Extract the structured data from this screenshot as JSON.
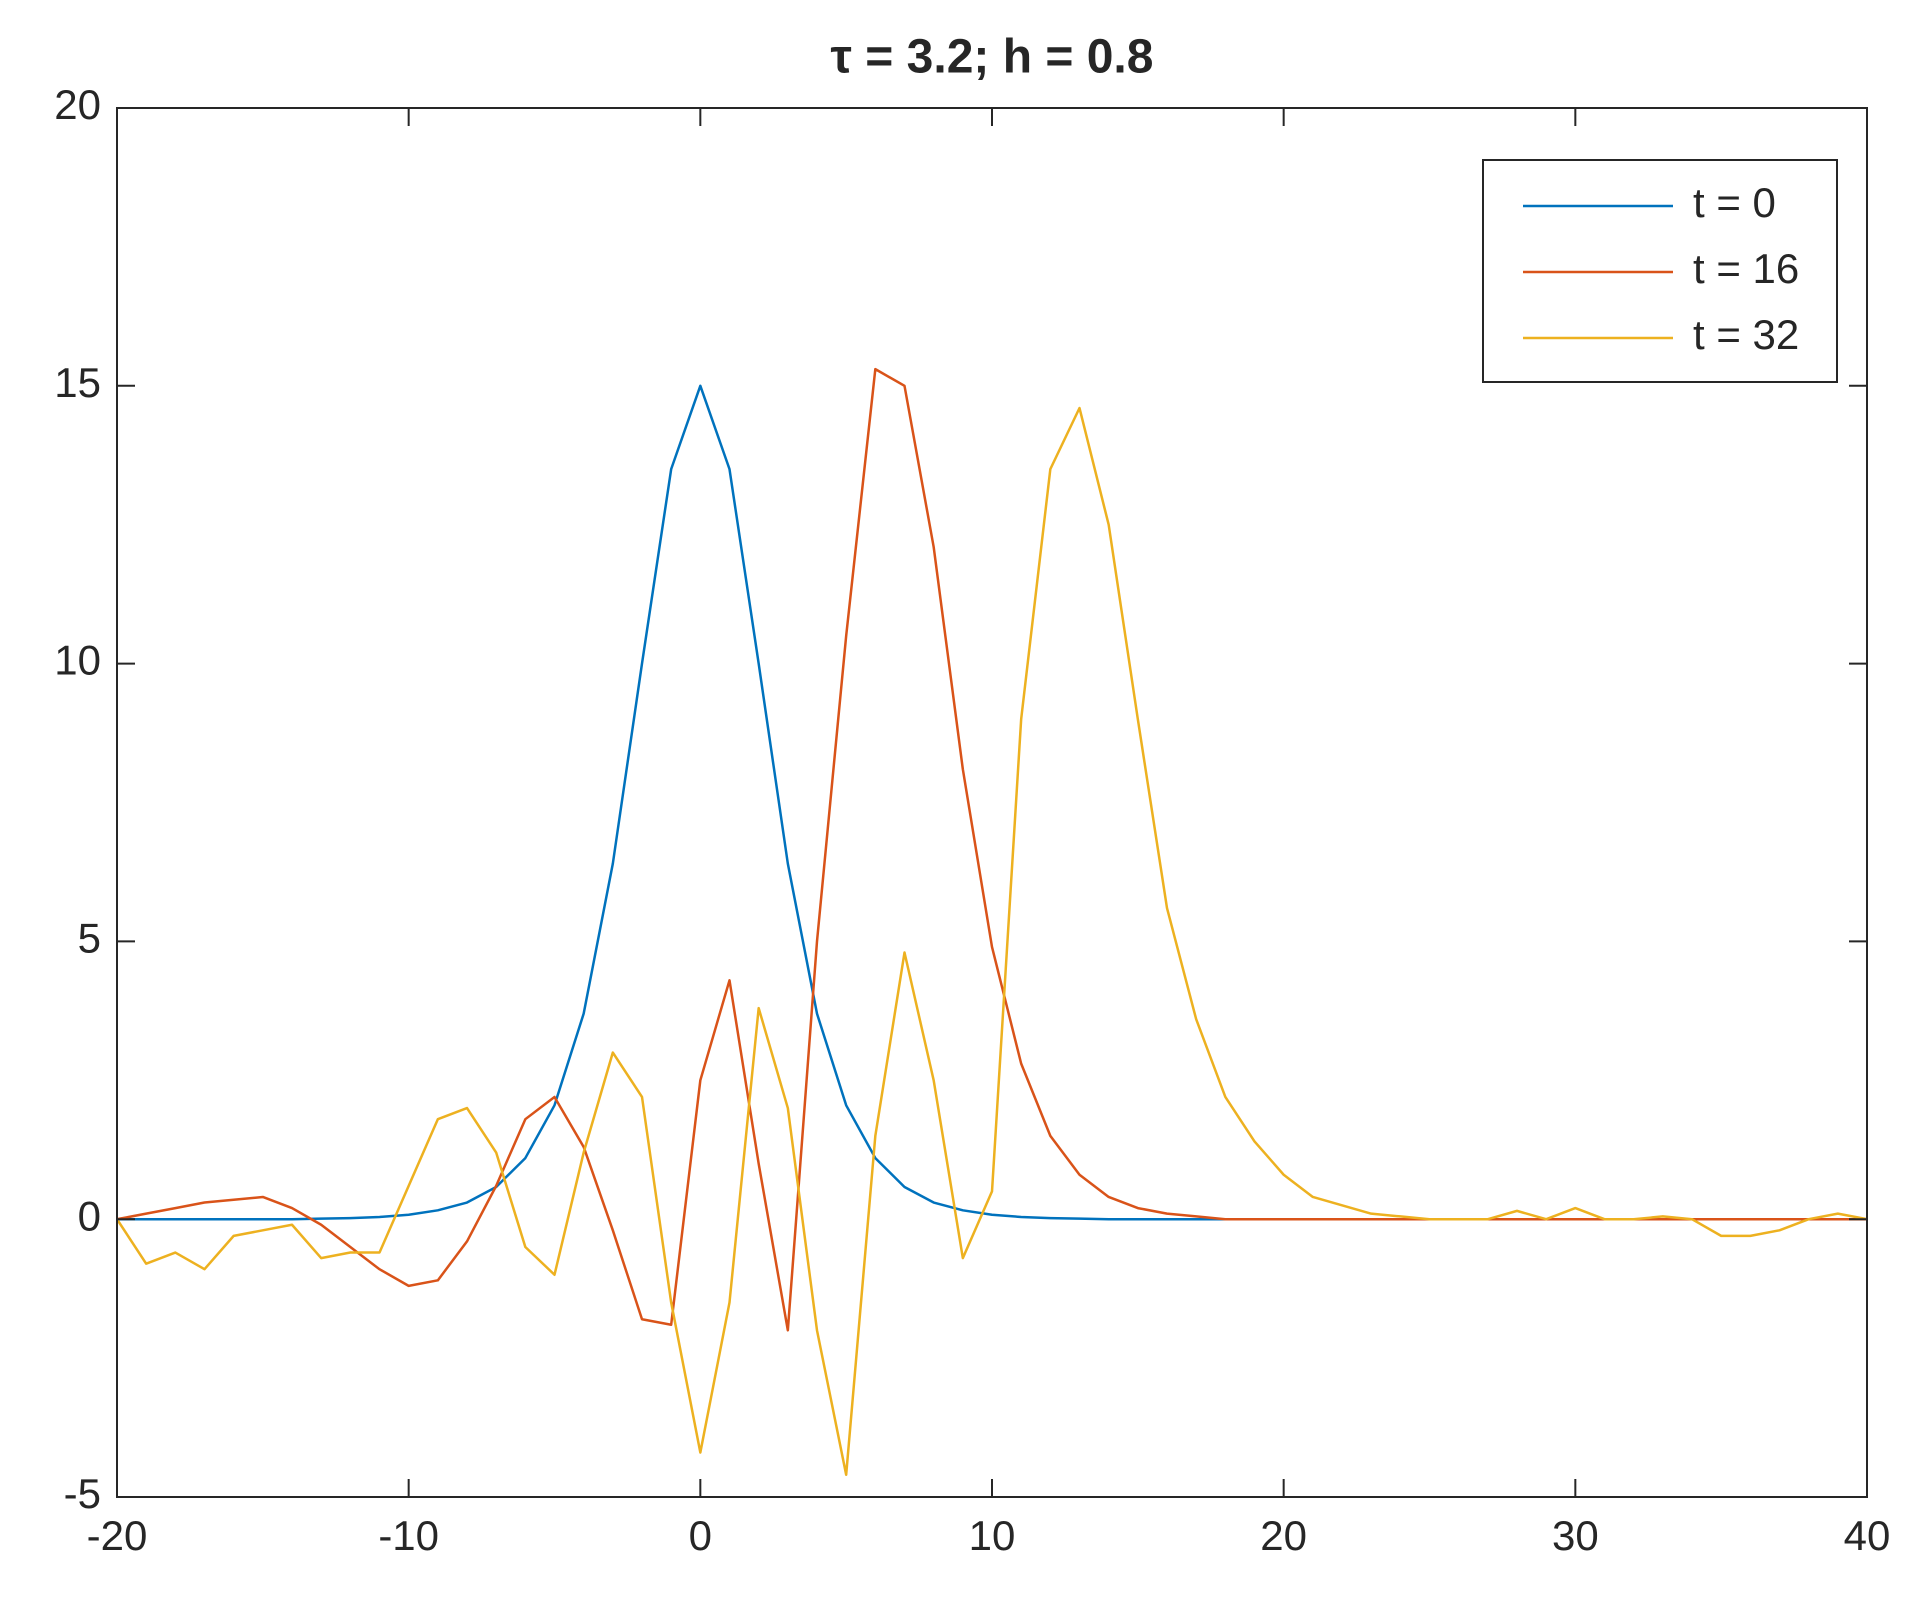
{
  "chart_data": {
    "type": "line",
    "title": "τ = 3.2; h = 0.8",
    "x": [
      -20,
      -19,
      -18,
      -17,
      -16,
      -15,
      -14,
      -13,
      -12,
      -11,
      -10,
      -9,
      -8,
      -7,
      -6,
      -5,
      -4,
      -3,
      -2,
      -1,
      0,
      1,
      2,
      3,
      4,
      5,
      6,
      7,
      8,
      9,
      10,
      11,
      12,
      13,
      14,
      15,
      16,
      17,
      18,
      19,
      20,
      21,
      22,
      23,
      24,
      25,
      26,
      27,
      28,
      29,
      30,
      31,
      32,
      33,
      34,
      35,
      36,
      37,
      38,
      39,
      40
    ],
    "series": [
      {
        "name": "t = 0",
        "color": "#0072BD",
        "values": [
          0,
          0,
          0,
          0,
          0,
          0,
          0,
          0.01,
          0.02,
          0.04,
          0.08,
          0.16,
          0.3,
          0.58,
          1.1,
          2.05,
          3.7,
          6.4,
          10,
          13.5,
          15,
          13.5,
          10,
          6.4,
          3.7,
          2.05,
          1.1,
          0.58,
          0.3,
          0.16,
          0.08,
          0.04,
          0.02,
          0.01,
          0,
          0,
          0,
          0,
          0,
          0,
          0,
          0,
          0,
          0,
          0,
          0,
          0,
          0,
          0,
          0,
          0,
          0,
          0,
          0,
          0,
          0,
          0,
          0,
          0,
          0,
          0
        ]
      },
      {
        "name": "t = 16",
        "color": "#D95319",
        "values": [
          0,
          0.1,
          0.2,
          0.3,
          0.35,
          0.4,
          0.2,
          -0.1,
          -0.5,
          -0.9,
          -1.2,
          -1.1,
          -0.4,
          0.6,
          1.8,
          2.2,
          1.3,
          -0.2,
          -1.8,
          -1.9,
          2.5,
          4.3,
          1.0,
          -2.0,
          5.0,
          10.5,
          15.3,
          15.0,
          12.1,
          8.1,
          4.9,
          2.8,
          1.5,
          0.8,
          0.4,
          0.2,
          0.1,
          0.05,
          0,
          0,
          0,
          0,
          0,
          0,
          0,
          0,
          0,
          0,
          0,
          0,
          0,
          0,
          0,
          0,
          0,
          0,
          0,
          0,
          0,
          0,
          0
        ]
      },
      {
        "name": "t = 32",
        "color": "#EDB120",
        "values": [
          0,
          -0.8,
          -0.6,
          -0.9,
          -0.3,
          -0.2,
          -0.1,
          -0.7,
          -0.6,
          -0.6,
          0.6,
          1.8,
          2.0,
          1.2,
          -0.5,
          -1.0,
          1.2,
          3.0,
          2.2,
          -1.5,
          -4.2,
          -1.5,
          3.8,
          2.0,
          -2.0,
          -4.6,
          1.5,
          4.8,
          2.5,
          -0.7,
          0.5,
          9.0,
          13.5,
          14.6,
          12.5,
          9,
          5.6,
          3.6,
          2.2,
          1.4,
          0.8,
          0.4,
          0.25,
          0.1,
          0.05,
          0,
          0,
          0,
          0.15,
          0,
          0.2,
          0,
          0,
          0.05,
          0,
          -0.3,
          -0.3,
          -0.2,
          0,
          0.1,
          0
        ]
      }
    ],
    "xlim": [
      -20,
      40
    ],
    "xticks": [
      -20,
      -10,
      0,
      10,
      20,
      30,
      40
    ],
    "ylim": [
      -5,
      20
    ],
    "yticks": [
      -5,
      0,
      5,
      10,
      15,
      20
    ],
    "grid": false,
    "legend": "upper right"
  }
}
